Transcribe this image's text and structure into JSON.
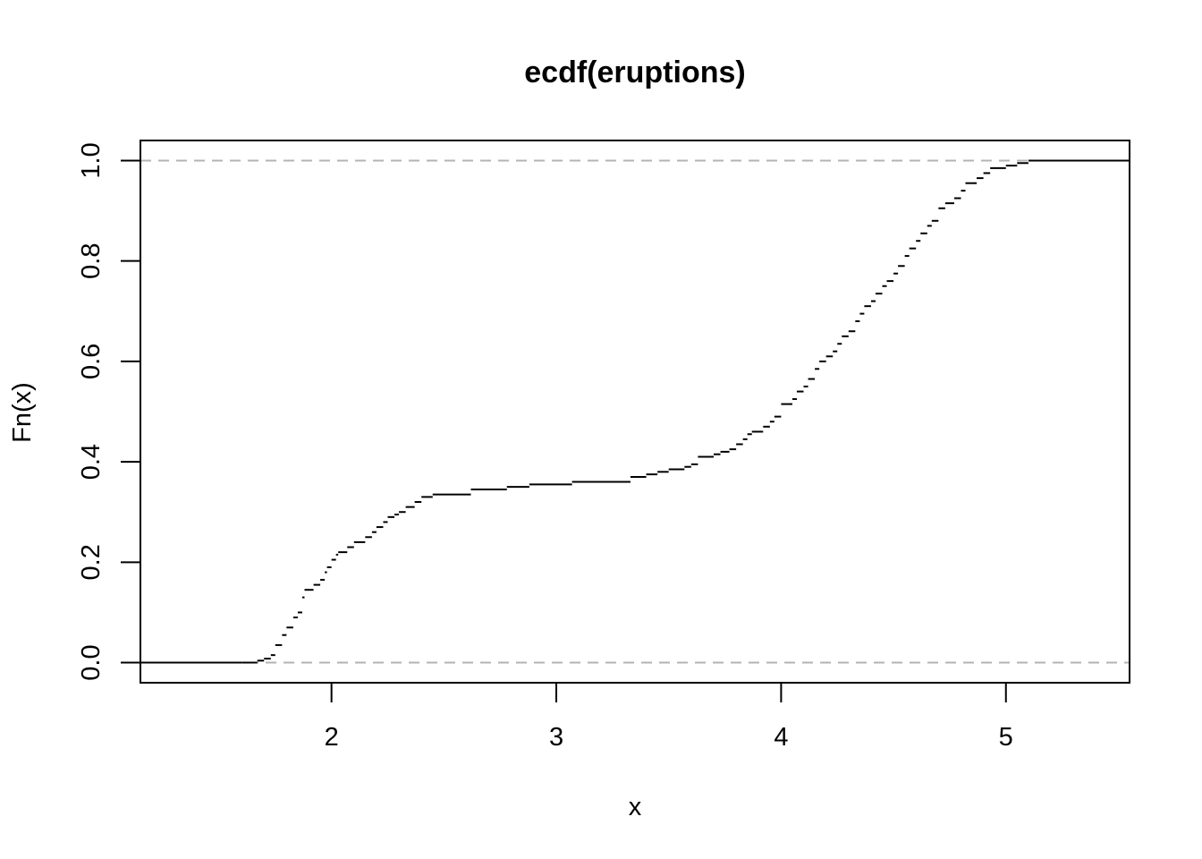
{
  "chart_data": {
    "type": "line",
    "subtype": "step",
    "title": "ecdf(eruptions)",
    "xlabel": "x",
    "ylabel": "Fn(x)",
    "xlim": [
      1.15,
      5.55
    ],
    "ylim": [
      -0.04,
      1.04
    ],
    "xticks": [
      2,
      3,
      4,
      5
    ],
    "xtick_labels": [
      "2",
      "3",
      "4",
      "5"
    ],
    "yticks": [
      0.0,
      0.2,
      0.4,
      0.6,
      0.8,
      1.0
    ],
    "ytick_labels": [
      "0.0",
      "0.2",
      "0.4",
      "0.6",
      "0.8",
      "1.0"
    ],
    "reference_lines": [
      0.0,
      1.0
    ],
    "grid": false,
    "legend": "none",
    "colors": {
      "line": "#000000",
      "reference": "#b3b3b3",
      "frame": "#000000"
    },
    "points": [
      [
        1.6,
        0.0
      ],
      [
        1.67,
        0.004
      ],
      [
        1.7,
        0.008
      ],
      [
        1.73,
        0.015
      ],
      [
        1.75,
        0.035
      ],
      [
        1.78,
        0.055
      ],
      [
        1.8,
        0.07
      ],
      [
        1.83,
        0.09
      ],
      [
        1.85,
        0.1
      ],
      [
        1.87,
        0.13
      ],
      [
        1.88,
        0.145
      ],
      [
        1.92,
        0.155
      ],
      [
        1.95,
        0.165
      ],
      [
        1.97,
        0.18
      ],
      [
        1.98,
        0.19
      ],
      [
        2.0,
        0.205
      ],
      [
        2.02,
        0.215
      ],
      [
        2.03,
        0.22
      ],
      [
        2.07,
        0.23
      ],
      [
        2.1,
        0.24
      ],
      [
        2.15,
        0.25
      ],
      [
        2.18,
        0.26
      ],
      [
        2.2,
        0.27
      ],
      [
        2.23,
        0.28
      ],
      [
        2.25,
        0.29
      ],
      [
        2.28,
        0.295
      ],
      [
        2.3,
        0.3
      ],
      [
        2.33,
        0.31
      ],
      [
        2.37,
        0.32
      ],
      [
        2.4,
        0.33
      ],
      [
        2.45,
        0.335
      ],
      [
        2.62,
        0.345
      ],
      [
        2.78,
        0.35
      ],
      [
        2.88,
        0.355
      ],
      [
        3.07,
        0.36
      ],
      [
        3.33,
        0.37
      ],
      [
        3.4,
        0.375
      ],
      [
        3.45,
        0.38
      ],
      [
        3.5,
        0.385
      ],
      [
        3.57,
        0.39
      ],
      [
        3.6,
        0.395
      ],
      [
        3.63,
        0.41
      ],
      [
        3.7,
        0.415
      ],
      [
        3.73,
        0.42
      ],
      [
        3.77,
        0.425
      ],
      [
        3.8,
        0.435
      ],
      [
        3.83,
        0.445
      ],
      [
        3.85,
        0.455
      ],
      [
        3.87,
        0.46
      ],
      [
        3.92,
        0.47
      ],
      [
        3.95,
        0.48
      ],
      [
        3.97,
        0.49
      ],
      [
        4.0,
        0.515
      ],
      [
        4.05,
        0.525
      ],
      [
        4.07,
        0.54
      ],
      [
        4.1,
        0.55
      ],
      [
        4.12,
        0.565
      ],
      [
        4.15,
        0.585
      ],
      [
        4.17,
        0.6
      ],
      [
        4.2,
        0.61
      ],
      [
        4.23,
        0.62
      ],
      [
        4.25,
        0.635
      ],
      [
        4.27,
        0.65
      ],
      [
        4.3,
        0.66
      ],
      [
        4.33,
        0.68
      ],
      [
        4.35,
        0.695
      ],
      [
        4.37,
        0.71
      ],
      [
        4.4,
        0.72
      ],
      [
        4.42,
        0.735
      ],
      [
        4.45,
        0.75
      ],
      [
        4.47,
        0.76
      ],
      [
        4.5,
        0.775
      ],
      [
        4.52,
        0.79
      ],
      [
        4.55,
        0.81
      ],
      [
        4.57,
        0.825
      ],
      [
        4.6,
        0.84
      ],
      [
        4.62,
        0.855
      ],
      [
        4.65,
        0.87
      ],
      [
        4.67,
        0.88
      ],
      [
        4.7,
        0.905
      ],
      [
        4.73,
        0.915
      ],
      [
        4.77,
        0.925
      ],
      [
        4.8,
        0.94
      ],
      [
        4.82,
        0.955
      ],
      [
        4.87,
        0.965
      ],
      [
        4.9,
        0.975
      ],
      [
        4.93,
        0.985
      ],
      [
        5.0,
        0.99
      ],
      [
        5.05,
        0.995
      ],
      [
        5.1,
        1.0
      ]
    ]
  }
}
